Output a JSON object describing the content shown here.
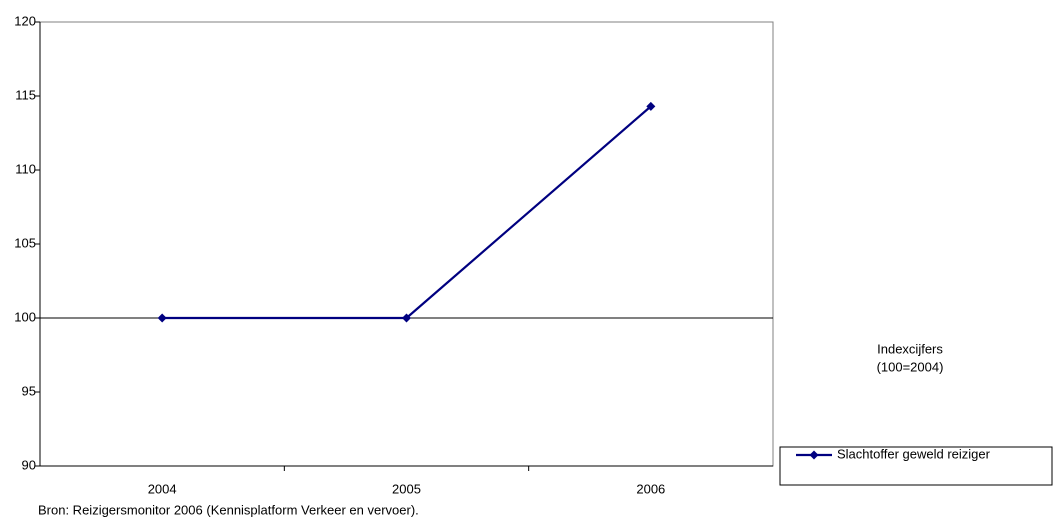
{
  "chart_data": {
    "type": "line",
    "categories": [
      "2004",
      "2005",
      "2006"
    ],
    "series": [
      {
        "name": "Slachtoffer geweld reiziger",
        "color": "#000080",
        "values": [
          100,
          100,
          114.3
        ]
      }
    ],
    "ylim": [
      90,
      120
    ],
    "yticks": [
      90,
      95,
      100,
      105,
      110,
      115,
      120
    ],
    "annotation": [
      "Indexcijfers",
      "(100=2004)"
    ],
    "source": "Bron: Reizigersmonitor 2006 (Kennisplatform Verkeer en vervoer)."
  }
}
